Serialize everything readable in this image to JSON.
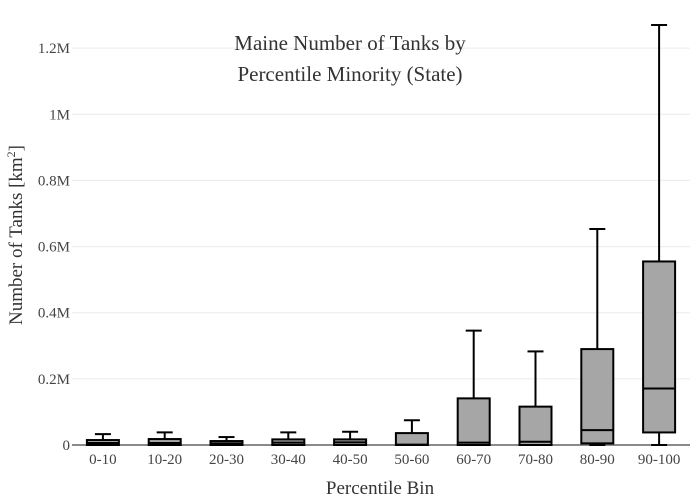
{
  "chart_data": {
    "type": "box",
    "title": [
      "Maine Number of Tanks by",
      "Percentile Minority (State)"
    ],
    "xlabel": "Percentile Bin",
    "ylabel": "Number of Tanks  [km",
    "ylabel_sup": "2",
    "ylabel_close": "]",
    "ylim": [
      0,
      1270000
    ],
    "yticks": [
      {
        "value": 0,
        "label": "0"
      },
      {
        "value": 200000,
        "label": "0.2M"
      },
      {
        "value": 400000,
        "label": "0.4M"
      },
      {
        "value": 600000,
        "label": "0.6M"
      },
      {
        "value": 800000,
        "label": "0.8M"
      },
      {
        "value": 1000000,
        "label": "1M"
      },
      {
        "value": 1200000,
        "label": "1.2M"
      }
    ],
    "grid": true,
    "box_color": "#a6a6a6",
    "line_color": "#000000",
    "categories": [
      "0-10",
      "10-20",
      "20-30",
      "30-40",
      "40-50",
      "50-60",
      "60-70",
      "70-80",
      "80-90",
      "90-100"
    ],
    "boxes": [
      {
        "min": 0,
        "q1": 0,
        "median": 6000,
        "q3": 15000,
        "max": 33000
      },
      {
        "min": 0,
        "q1": 0,
        "median": 6000,
        "q3": 18000,
        "max": 38000
      },
      {
        "min": 0,
        "q1": 0,
        "median": 5000,
        "q3": 12000,
        "max": 24000
      },
      {
        "min": 0,
        "q1": 0,
        "median": 7000,
        "q3": 17000,
        "max": 38000
      },
      {
        "min": 0,
        "q1": 0,
        "median": 8000,
        "q3": 17000,
        "max": 40000
      },
      {
        "min": 0,
        "q1": 0,
        "median": 1000,
        "q3": 36000,
        "max": 75000
      },
      {
        "min": 0,
        "q1": 0,
        "median": 7000,
        "q3": 141000,
        "max": 346000
      },
      {
        "min": 0,
        "q1": 0,
        "median": 10000,
        "q3": 116000,
        "max": 283000
      },
      {
        "min": 0,
        "q1": 5000,
        "median": 45000,
        "q3": 290000,
        "max": 653000
      },
      {
        "min": 0,
        "q1": 38000,
        "median": 171000,
        "q3": 555000,
        "max": 1270000
      }
    ]
  }
}
